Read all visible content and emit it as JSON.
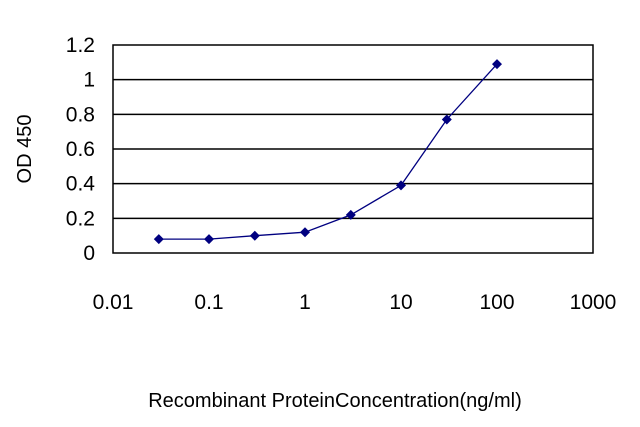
{
  "chart_data": {
    "type": "line",
    "title": "",
    "xlabel": "Recombinant ProteinConcentration(ng/ml)",
    "ylabel": "OD 450",
    "x_scale": "log",
    "xlim": [
      0.01,
      1000
    ],
    "ylim": [
      0,
      1.2
    ],
    "x_ticks": [
      "0.01",
      "0.1",
      "1",
      "10",
      "100",
      "1000"
    ],
    "y_ticks": [
      "0",
      "0.2",
      "0.4",
      "0.6",
      "0.8",
      "1",
      "1.2"
    ],
    "grid": "horizontal",
    "legend": "none",
    "series": [
      {
        "x": [
          0.03,
          0.1,
          0.3,
          1,
          3,
          10,
          30,
          100
        ],
        "y": [
          0.08,
          0.08,
          0.1,
          0.12,
          0.22,
          0.39,
          0.77,
          1.09
        ],
        "color": "#000080",
        "marker": "diamond"
      }
    ]
  }
}
